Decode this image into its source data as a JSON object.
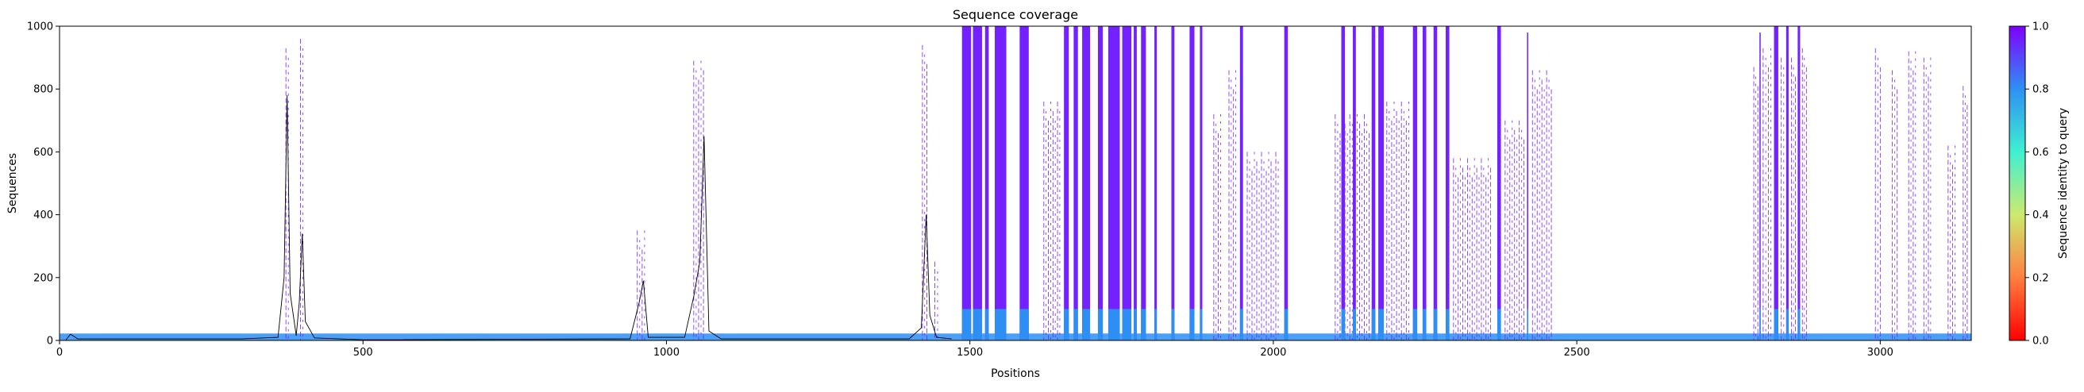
{
  "chart_data": {
    "type": "heatmap",
    "title": "Sequence coverage",
    "xlabel": "Positions",
    "ylabel": "Sequences",
    "xlim": [
      0,
      3150
    ],
    "ylim": [
      0,
      1000
    ],
    "x_ticks": [
      0,
      500,
      1000,
      1500,
      2000,
      2500,
      3000
    ],
    "y_ticks": [
      0,
      200,
      400,
      600,
      800,
      1000
    ],
    "grid": false,
    "colorbar": {
      "label": "Sequence identity to query",
      "colormap": "rainbow_r",
      "range": [
        0.0,
        1.0
      ],
      "ticks": [
        "0.0",
        "0.2",
        "0.4",
        "0.6",
        "0.8",
        "1.0"
      ]
    },
    "base_band": {
      "identity": 0.78,
      "x_start": 0,
      "x_end": 3150,
      "depth": 22
    },
    "coverage_columns": [
      {
        "x_start": 1487,
        "x_end": 1502,
        "depth": 1000,
        "identity": 0.93
      },
      {
        "x_start": 1505,
        "x_end": 1520,
        "depth": 1000,
        "identity": 0.93
      },
      {
        "x_start": 1525,
        "x_end": 1531,
        "depth": 1000,
        "identity": 0.93
      },
      {
        "x_start": 1541,
        "x_end": 1560,
        "depth": 1000,
        "identity": 0.93
      },
      {
        "x_start": 1582,
        "x_end": 1597,
        "depth": 1000,
        "identity": 0.93
      },
      {
        "x_start": 1655,
        "x_end": 1663,
        "depth": 1000,
        "identity": 0.93
      },
      {
        "x_start": 1671,
        "x_end": 1678,
        "depth": 1000,
        "identity": 0.93
      },
      {
        "x_start": 1685,
        "x_end": 1698,
        "depth": 1000,
        "identity": 0.93
      },
      {
        "x_start": 1711,
        "x_end": 1719,
        "depth": 1000,
        "identity": 0.93
      },
      {
        "x_start": 1728,
        "x_end": 1747,
        "depth": 1000,
        "identity": 0.93
      },
      {
        "x_start": 1751,
        "x_end": 1766,
        "depth": 1000,
        "identity": 0.93
      },
      {
        "x_start": 1770,
        "x_end": 1775,
        "depth": 1000,
        "identity": 0.93
      },
      {
        "x_start": 1782,
        "x_end": 1790,
        "depth": 1000,
        "identity": 0.93
      },
      {
        "x_start": 1804,
        "x_end": 1808,
        "depth": 1000,
        "identity": 0.93
      },
      {
        "x_start": 1832,
        "x_end": 1837,
        "depth": 1000,
        "identity": 0.93
      },
      {
        "x_start": 1862,
        "x_end": 1870,
        "depth": 1000,
        "identity": 0.93
      },
      {
        "x_start": 1879,
        "x_end": 1883,
        "depth": 1000,
        "identity": 0.93
      },
      {
        "x_start": 1945,
        "x_end": 1950,
        "depth": 1000,
        "identity": 0.93
      },
      {
        "x_start": 2018,
        "x_end": 2024,
        "depth": 1000,
        "identity": 0.93
      },
      {
        "x_start": 2112,
        "x_end": 2118,
        "depth": 1000,
        "identity": 0.93
      },
      {
        "x_start": 2131,
        "x_end": 2136,
        "depth": 1000,
        "identity": 0.93
      },
      {
        "x_start": 2162,
        "x_end": 2168,
        "depth": 1000,
        "identity": 0.93
      },
      {
        "x_start": 2173,
        "x_end": 2182,
        "depth": 1000,
        "identity": 0.93
      },
      {
        "x_start": 2230,
        "x_end": 2237,
        "depth": 1000,
        "identity": 0.93
      },
      {
        "x_start": 2246,
        "x_end": 2252,
        "depth": 1000,
        "identity": 0.93
      },
      {
        "x_start": 2264,
        "x_end": 2270,
        "depth": 1000,
        "identity": 0.93
      },
      {
        "x_start": 2284,
        "x_end": 2290,
        "depth": 1000,
        "identity": 0.93
      },
      {
        "x_start": 2369,
        "x_end": 2375,
        "depth": 1000,
        "identity": 0.93
      },
      {
        "x_start": 2418,
        "x_end": 2420,
        "depth": 980,
        "identity": 0.93
      },
      {
        "x_start": 2801,
        "x_end": 2803,
        "depth": 980,
        "identity": 0.93
      },
      {
        "x_start": 2825,
        "x_end": 2832,
        "depth": 1000,
        "identity": 0.93
      },
      {
        "x_start": 2845,
        "x_end": 2849,
        "depth": 1000,
        "identity": 0.93
      },
      {
        "x_start": 2864,
        "x_end": 2868,
        "depth": 1000,
        "identity": 0.93
      }
    ],
    "sparse_columns": [
      {
        "x_start": 371,
        "x_end": 379,
        "depth": 930,
        "identity": 0.93
      },
      {
        "x_start": 395,
        "x_end": 403,
        "depth": 960,
        "identity": 0.93
      },
      {
        "x_start": 950,
        "x_end": 966,
        "depth": 350,
        "identity": 0.93
      },
      {
        "x_start": 1043,
        "x_end": 1063,
        "depth": 890,
        "identity": 0.93
      },
      {
        "x_start": 1420,
        "x_end": 1431,
        "depth": 940,
        "identity": 0.93
      },
      {
        "x_start": 1440,
        "x_end": 1449,
        "depth": 250,
        "identity": 0.93
      },
      {
        "x_start": 1620,
        "x_end": 1650,
        "depth": 760,
        "identity": 0.93
      },
      {
        "x_start": 1900,
        "x_end": 1915,
        "depth": 720,
        "identity": 0.93
      },
      {
        "x_start": 1925,
        "x_end": 1940,
        "depth": 860,
        "identity": 0.93
      },
      {
        "x_start": 1955,
        "x_end": 2010,
        "depth": 600,
        "identity": 0.93
      },
      {
        "x_start": 2100,
        "x_end": 2160,
        "depth": 720,
        "identity": 0.93
      },
      {
        "x_start": 2185,
        "x_end": 2225,
        "depth": 760,
        "identity": 0.93
      },
      {
        "x_start": 2295,
        "x_end": 2360,
        "depth": 580,
        "identity": 0.93
      },
      {
        "x_start": 2380,
        "x_end": 2415,
        "depth": 700,
        "identity": 0.93
      },
      {
        "x_start": 2425,
        "x_end": 2460,
        "depth": 860,
        "identity": 0.93
      },
      {
        "x_start": 2790,
        "x_end": 2800,
        "depth": 870,
        "identity": 0.93
      },
      {
        "x_start": 2805,
        "x_end": 2822,
        "depth": 930,
        "identity": 0.93
      },
      {
        "x_start": 2835,
        "x_end": 2843,
        "depth": 900,
        "identity": 0.93
      },
      {
        "x_start": 2852,
        "x_end": 2862,
        "depth": 900,
        "identity": 0.93
      },
      {
        "x_start": 2870,
        "x_end": 2880,
        "depth": 930,
        "identity": 0.93
      },
      {
        "x_start": 2990,
        "x_end": 3002,
        "depth": 930,
        "identity": 0.93
      },
      {
        "x_start": 3018,
        "x_end": 3030,
        "depth": 860,
        "identity": 0.93
      },
      {
        "x_start": 3045,
        "x_end": 3060,
        "depth": 920,
        "identity": 0.93
      },
      {
        "x_start": 3070,
        "x_end": 3085,
        "depth": 900,
        "identity": 0.93
      },
      {
        "x_start": 3110,
        "x_end": 3125,
        "depth": 620,
        "identity": 0.93
      },
      {
        "x_start": 3135,
        "x_end": 3145,
        "depth": 810,
        "identity": 0.93
      }
    ],
    "coverage_line": {
      "x": [
        0,
        10,
        18,
        30,
        300,
        360,
        370,
        375,
        380,
        390,
        395,
        400,
        405,
        420,
        500,
        940,
        955,
        962,
        970,
        1030,
        1045,
        1055,
        1062,
        1070,
        1090,
        1400,
        1420,
        1428,
        1434,
        1445,
        1470
      ],
      "y": [
        0,
        0,
        20,
        5,
        5,
        10,
        200,
        780,
        150,
        15,
        120,
        340,
        60,
        8,
        2,
        5,
        120,
        190,
        10,
        10,
        140,
        250,
        650,
        30,
        5,
        5,
        40,
        400,
        80,
        10,
        5
      ]
    }
  }
}
